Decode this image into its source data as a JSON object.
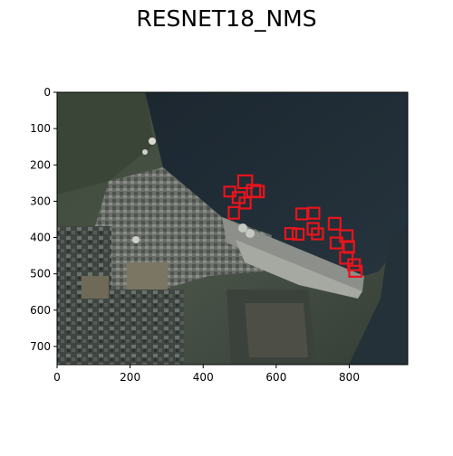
{
  "figure": {
    "title": "RESNET18_NMS"
  },
  "image": {
    "x_range": [
      0,
      960
    ],
    "y_range": [
      0,
      750
    ],
    "x_ticks": [
      0,
      200,
      400,
      600,
      800
    ],
    "y_ticks": [
      0,
      100,
      200,
      300,
      400,
      500,
      600,
      700
    ],
    "box_color": "#e8141c",
    "detections": [
      {
        "x": 458,
        "y": 260,
        "w": 30,
        "h": 27
      },
      {
        "x": 496,
        "y": 229,
        "w": 38,
        "h": 35
      },
      {
        "x": 520,
        "y": 255,
        "w": 36,
        "h": 33
      },
      {
        "x": 532,
        "y": 258,
        "w": 34,
        "h": 31
      },
      {
        "x": 481,
        "y": 275,
        "w": 32,
        "h": 30
      },
      {
        "x": 500,
        "y": 290,
        "w": 30,
        "h": 30
      },
      {
        "x": 470,
        "y": 316,
        "w": 28,
        "h": 32
      },
      {
        "x": 655,
        "y": 320,
        "w": 30,
        "h": 30
      },
      {
        "x": 688,
        "y": 318,
        "w": 30,
        "h": 30
      },
      {
        "x": 625,
        "y": 374,
        "w": 30,
        "h": 30
      },
      {
        "x": 645,
        "y": 376,
        "w": 30,
        "h": 30
      },
      {
        "x": 686,
        "y": 360,
        "w": 30,
        "h": 32
      },
      {
        "x": 698,
        "y": 375,
        "w": 30,
        "h": 30
      },
      {
        "x": 744,
        "y": 346,
        "w": 32,
        "h": 32
      },
      {
        "x": 749,
        "y": 400,
        "w": 32,
        "h": 30
      },
      {
        "x": 775,
        "y": 380,
        "w": 34,
        "h": 32
      },
      {
        "x": 785,
        "y": 410,
        "w": 28,
        "h": 32
      },
      {
        "x": 775,
        "y": 440,
        "w": 34,
        "h": 32
      },
      {
        "x": 797,
        "y": 460,
        "w": 32,
        "h": 30
      },
      {
        "x": 800,
        "y": 478,
        "w": 34,
        "h": 30
      }
    ]
  }
}
